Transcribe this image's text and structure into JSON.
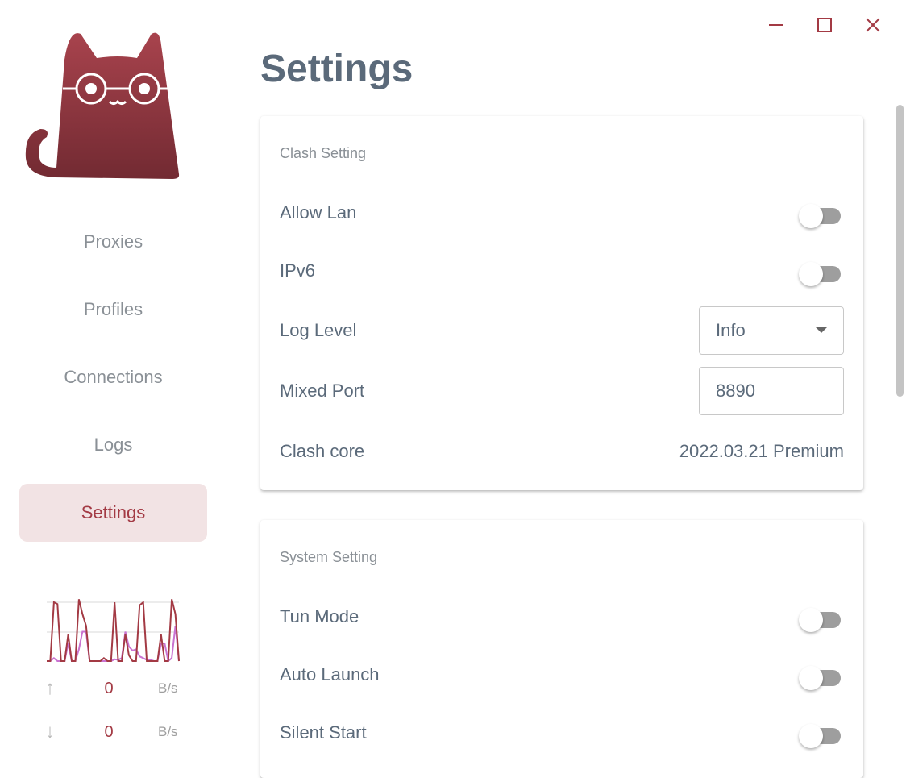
{
  "window": {
    "minimize_icon": "minimize-icon",
    "maximize_icon": "maximize-icon",
    "close_icon": "close-icon"
  },
  "sidebar": {
    "items": [
      {
        "label": "Proxies",
        "active": false
      },
      {
        "label": "Profiles",
        "active": false
      },
      {
        "label": "Connections",
        "active": false
      },
      {
        "label": "Logs",
        "active": false
      },
      {
        "label": "Settings",
        "active": true
      }
    ],
    "traffic": {
      "upload": {
        "value": "0",
        "unit": "B/s"
      },
      "download": {
        "value": "0",
        "unit": "B/s"
      },
      "graph": {
        "upload_series": [
          0,
          0,
          1,
          0.97,
          0,
          0,
          0.45,
          0,
          0,
          1.05,
          0.8,
          0.6,
          0,
          0,
          0,
          0,
          0.05,
          0,
          0,
          1,
          0,
          0,
          0.45,
          0.1,
          0,
          0,
          0.95,
          1,
          0,
          0,
          0,
          0,
          0.45,
          0,
          0,
          1.05,
          0.8,
          0
        ],
        "download_series": [
          0,
          0,
          0.05,
          0,
          0,
          0,
          0.3,
          0,
          0,
          0.2,
          0.5,
          0.5,
          0,
          0,
          0,
          0,
          0,
          0,
          0,
          0.03,
          0.02,
          0.05,
          0.5,
          0.25,
          0.18,
          0.2,
          0.08,
          0.05,
          0.02,
          0.02,
          0,
          0,
          0.3,
          0.3,
          0,
          0.05,
          0.6,
          0
        ],
        "colors": {
          "upload": "#a33a44",
          "download": "#c973d1"
        }
      }
    }
  },
  "page": {
    "title": "Settings"
  },
  "clash_setting": {
    "heading": "Clash Setting",
    "allow_lan": {
      "label": "Allow Lan",
      "on": false
    },
    "ipv6": {
      "label": "IPv6",
      "on": false
    },
    "log_level": {
      "label": "Log Level",
      "value": "Info"
    },
    "mixed_port": {
      "label": "Mixed Port",
      "value": "8890"
    },
    "clash_core": {
      "label": "Clash core",
      "value": "2022.03.21 Premium"
    }
  },
  "system_setting": {
    "heading": "System Setting",
    "tun_mode": {
      "label": "Tun Mode",
      "on": false
    },
    "auto_launch": {
      "label": "Auto Launch",
      "on": false
    },
    "silent_start": {
      "label": "Silent Start",
      "on": false
    }
  },
  "colors": {
    "accent": "#a33a44",
    "active_bg": "#f2e3e4",
    "text": "#5b6a7a"
  }
}
